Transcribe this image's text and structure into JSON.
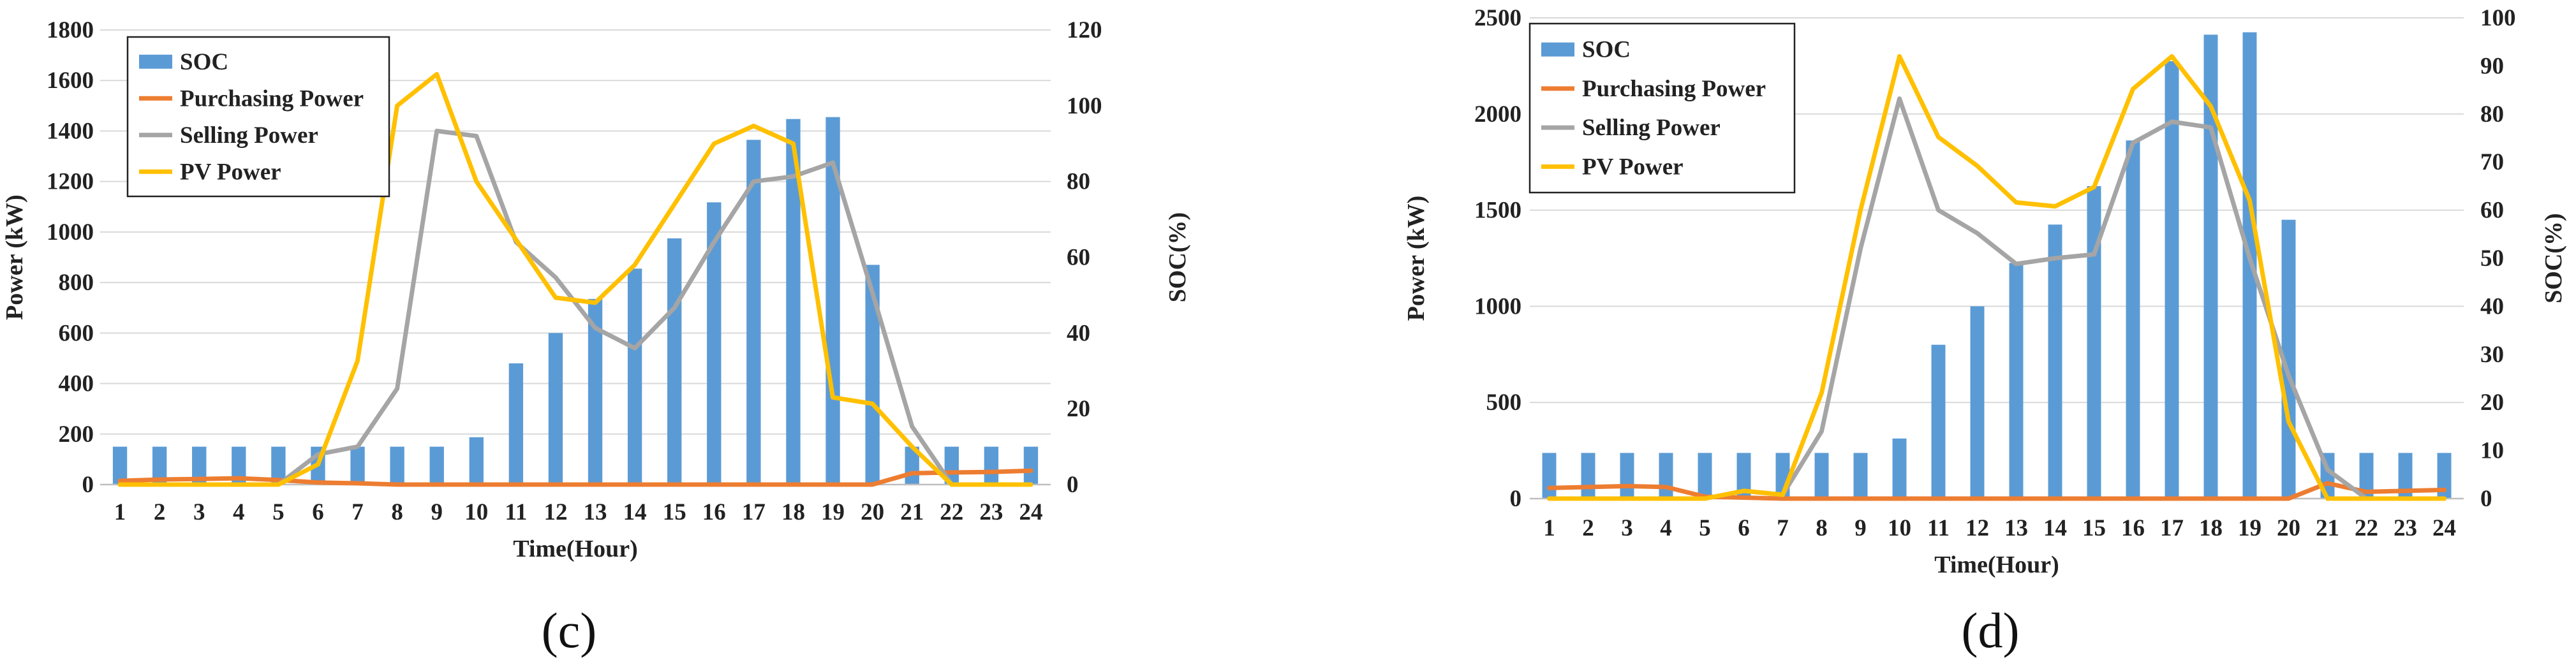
{
  "chart_data": [
    {
      "type": "bar+line",
      "caption": "(c)",
      "xlabel": "Time(Hour)",
      "ylabel": "Power (kW)",
      "y2label": "SOC(%)",
      "categories": [
        "1",
        "2",
        "3",
        "4",
        "5",
        "6",
        "7",
        "8",
        "9",
        "10",
        "11",
        "12",
        "13",
        "14",
        "15",
        "16",
        "17",
        "18",
        "19",
        "20",
        "21",
        "22",
        "23",
        "24"
      ],
      "ylim": [
        0,
        1800
      ],
      "yticks": [
        0,
        200,
        400,
        600,
        800,
        1000,
        1200,
        1400,
        1600,
        1800
      ],
      "y2lim": [
        0,
        120
      ],
      "y2ticks": [
        0,
        20,
        40,
        60,
        80,
        100,
        120
      ],
      "legend_position": "top-left",
      "bars": {
        "name": "SOC",
        "axis": "right",
        "color": "#5b9bd5",
        "values": [
          10,
          10,
          10,
          10,
          10,
          10,
          10,
          10,
          10,
          12.5,
          32,
          40,
          49,
          57,
          65,
          74.5,
          91,
          96.5,
          97,
          58,
          10,
          10,
          10,
          10
        ]
      },
      "series": [
        {
          "name": "Purchasing Power",
          "axis": "left",
          "color": "#ed7d31",
          "values": [
            15,
            20,
            22,
            25,
            18,
            8,
            5,
            0,
            0,
            0,
            0,
            0,
            0,
            0,
            0,
            0,
            0,
            0,
            0,
            0,
            45,
            48,
            50,
            55
          ]
        },
        {
          "name": "Selling Power",
          "axis": "left",
          "color": "#a5a5a5",
          "values": [
            0,
            0,
            0,
            0,
            0,
            120,
            150,
            380,
            1400,
            1380,
            960,
            820,
            620,
            540,
            700,
            960,
            1200,
            1220,
            1275,
            760,
            230,
            0,
            0,
            0
          ]
        },
        {
          "name": "PV Power",
          "axis": "left",
          "color": "#ffc000",
          "values": [
            0,
            0,
            0,
            0,
            0,
            80,
            490,
            1500,
            1625,
            1200,
            970,
            740,
            720,
            870,
            1110,
            1350,
            1420,
            1350,
            345,
            320,
            150,
            0,
            0,
            0
          ]
        }
      ]
    },
    {
      "type": "bar+line",
      "caption": "(d)",
      "xlabel": "Time(Hour)",
      "ylabel": "Power (kW)",
      "y2label": "SOC(%)",
      "categories": [
        "1",
        "2",
        "3",
        "4",
        "5",
        "6",
        "7",
        "8",
        "9",
        "10",
        "11",
        "12",
        "13",
        "14",
        "15",
        "16",
        "17",
        "18",
        "19",
        "20",
        "21",
        "22",
        "23",
        "24"
      ],
      "ylim": [
        0,
        2500
      ],
      "yticks": [
        0,
        500,
        1000,
        1500,
        2000,
        2500
      ],
      "y2lim": [
        0,
        100
      ],
      "y2ticks": [
        0,
        10,
        20,
        30,
        40,
        50,
        60,
        70,
        80,
        90,
        100
      ],
      "legend_position": "top-left",
      "bars": {
        "name": "SOC",
        "axis": "right",
        "color": "#5b9bd5",
        "values": [
          9.5,
          9.5,
          9.5,
          9.5,
          9.5,
          9.5,
          9.5,
          9.5,
          9.5,
          12.5,
          32,
          40,
          49,
          57,
          65,
          74.5,
          91,
          96.5,
          97,
          58,
          9.5,
          9.5,
          9.5,
          9.5
        ]
      },
      "series": [
        {
          "name": "Purchasing Power",
          "axis": "left",
          "color": "#ed7d31",
          "values": [
            55,
            60,
            65,
            60,
            10,
            5,
            0,
            0,
            0,
            0,
            0,
            0,
            0,
            0,
            0,
            0,
            0,
            0,
            0,
            0,
            80,
            35,
            40,
            45
          ]
        },
        {
          "name": "Selling Power",
          "axis": "left",
          "color": "#a5a5a5",
          "values": [
            0,
            0,
            0,
            0,
            0,
            40,
            20,
            350,
            1300,
            2080,
            1500,
            1380,
            1220,
            1250,
            1270,
            1850,
            1960,
            1930,
            1250,
            640,
            150,
            0,
            0,
            0
          ]
        },
        {
          "name": "PV Power",
          "axis": "left",
          "color": "#ffc000",
          "values": [
            0,
            0,
            0,
            0,
            0,
            40,
            20,
            550,
            1500,
            2300,
            1880,
            1730,
            1540,
            1520,
            1620,
            2130,
            2300,
            2040,
            1550,
            400,
            0,
            0,
            0,
            0
          ]
        }
      ]
    }
  ]
}
